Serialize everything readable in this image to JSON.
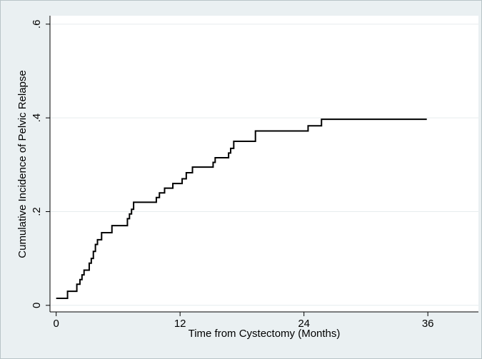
{
  "chart_data": {
    "type": "line",
    "step": "post",
    "x_label": "Time from Cystectomy (Months)",
    "y_label": "Cumulative Incidence of Pelvic Relapse",
    "x": [
      0,
      1.1,
      2.0,
      2.3,
      2.5,
      2.7,
      3.2,
      3.4,
      3.6,
      3.8,
      4.0,
      4.4,
      5.4,
      6.9,
      7.1,
      7.3,
      7.5,
      9.7,
      10.0,
      10.5,
      11.3,
      12.2,
      12.6,
      13.2,
      15.2,
      15.4,
      16.7,
      16.9,
      17.2,
      19.3,
      24.4,
      25.7,
      35.9
    ],
    "values": [
      0.015,
      0.03,
      0.045,
      0.055,
      0.065,
      0.075,
      0.09,
      0.1,
      0.115,
      0.13,
      0.14,
      0.155,
      0.17,
      0.185,
      0.195,
      0.205,
      0.22,
      0.23,
      0.24,
      0.25,
      0.26,
      0.27,
      0.283,
      0.295,
      0.305,
      0.315,
      0.325,
      0.335,
      0.35,
      0.372,
      0.383,
      0.397,
      0.397
    ],
    "color": "#000000",
    "xlim": [
      -0.6,
      40.9
    ],
    "ylim": [
      -0.014,
      0.618
    ],
    "xticks": [
      0,
      12,
      24,
      36
    ],
    "yticks": [
      0,
      {
        "value": 0.2,
        "label": ".2"
      },
      {
        "value": 0.4,
        "label": ".4"
      },
      {
        "value": 0.6,
        "label": ".6"
      }
    ],
    "grid": true
  }
}
